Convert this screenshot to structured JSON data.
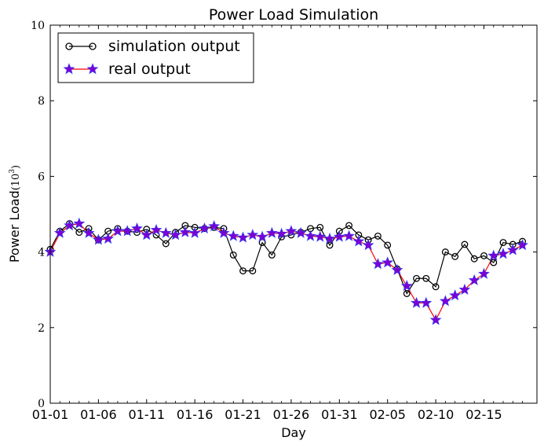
{
  "chart_data": {
    "type": "line",
    "title": "Power Load Simulation",
    "xlabel": "Day",
    "ylabel": "Power Load",
    "ylabel_unit": "(10",
    "ylabel_unit_exp": "3",
    "ylabel_unit_close": ")",
    "ylim": [
      0,
      10
    ],
    "yticks": [
      "0",
      "2",
      "4",
      "6",
      "8",
      "10"
    ],
    "xlim": [
      0,
      50.5
    ],
    "xtick_labels": [
      "01-01",
      "01-06",
      "01-11",
      "01-16",
      "01-21",
      "01-26",
      "01-31",
      "02-05",
      "02-10",
      "02-15"
    ],
    "grid": false,
    "legend_position": "top-left",
    "series": [
      {
        "name": "simulation output",
        "color": "#000000",
        "marker": "circle",
        "values": [
          4.07,
          4.55,
          4.75,
          4.52,
          4.62,
          4.32,
          4.55,
          4.62,
          4.55,
          4.52,
          4.6,
          4.45,
          4.22,
          4.52,
          4.7,
          4.65,
          4.62,
          4.65,
          4.62,
          3.92,
          3.5,
          3.5,
          4.25,
          3.92,
          4.4,
          4.45,
          4.52,
          4.62,
          4.65,
          4.18,
          4.55,
          4.7,
          4.45,
          4.32,
          4.42,
          4.18,
          3.55,
          2.9,
          3.3,
          3.3,
          3.08,
          4.0,
          3.88,
          4.2,
          3.82,
          3.9,
          3.72,
          4.25,
          4.2,
          4.28
        ]
      },
      {
        "name": "real output",
        "color": "#ff0000",
        "marker_color": "#7b00d4",
        "marker": "star",
        "values": [
          4.0,
          4.5,
          4.7,
          4.75,
          4.5,
          4.32,
          4.35,
          4.55,
          4.55,
          4.62,
          4.45,
          4.58,
          4.5,
          4.45,
          4.52,
          4.5,
          4.62,
          4.68,
          4.5,
          4.42,
          4.38,
          4.45,
          4.4,
          4.5,
          4.48,
          4.55,
          4.5,
          4.42,
          4.4,
          4.35,
          4.4,
          4.42,
          4.28,
          4.18,
          3.68,
          3.72,
          3.52,
          3.1,
          2.65,
          2.65,
          2.2,
          2.7,
          2.85,
          3.0,
          3.25,
          3.42,
          3.9,
          3.95,
          4.05,
          4.18
        ]
      }
    ]
  }
}
